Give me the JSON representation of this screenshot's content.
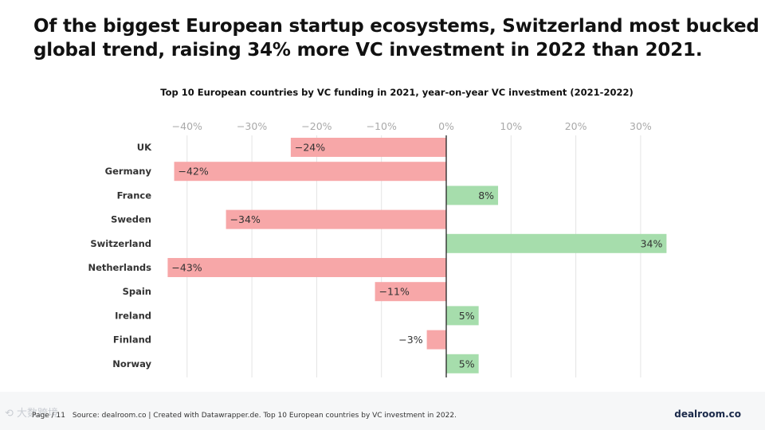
{
  "headline": {
    "line1": "Of the biggest European startup ecosystems, Switzerland most bucked the",
    "line2": "global trend, raising 34% more VC investment in 2022 than 2021."
  },
  "footer": {
    "watermark": "⟲ 大数跨境",
    "page": "Page / 11",
    "source": "Source: dealroom.co | Created with Datawrapper.de. Top 10 European countries by VC investment in 2022.",
    "brand": "dealroom.co"
  },
  "colors": {
    "negative": "#f7a7a8",
    "positive": "#a6ddac",
    "zero_line": "#222222",
    "grid": "#e4e4e4",
    "tick_text": "#a9a9a9"
  },
  "chart_data": {
    "type": "bar",
    "orientation": "horizontal",
    "title": "Top 10 European countries by VC funding in 2021, year-on-year VC investment (2021-2022)",
    "xlabel": "",
    "ylabel": "",
    "x_ticks": [
      -40,
      -30,
      -20,
      -10,
      0,
      10,
      20,
      30
    ],
    "x_tick_labels": [
      "−40%",
      "−30%",
      "−20%",
      "−10%",
      "0%",
      "10%",
      "20%",
      "30%"
    ],
    "xlim": [
      -43,
      34
    ],
    "grid": "vertical",
    "categories": [
      "UK",
      "Germany",
      "France",
      "Sweden",
      "Switzerland",
      "Netherlands",
      "Spain",
      "Ireland",
      "Finland",
      "Norway"
    ],
    "values": [
      -24,
      -42,
      8,
      -34,
      34,
      -43,
      -11,
      5,
      -3,
      5
    ],
    "data_labels": [
      "−24%",
      "−42%",
      "8%",
      "−34%",
      "34%",
      "−43%",
      "−11%",
      "5%",
      "−3%",
      "5%"
    ]
  }
}
